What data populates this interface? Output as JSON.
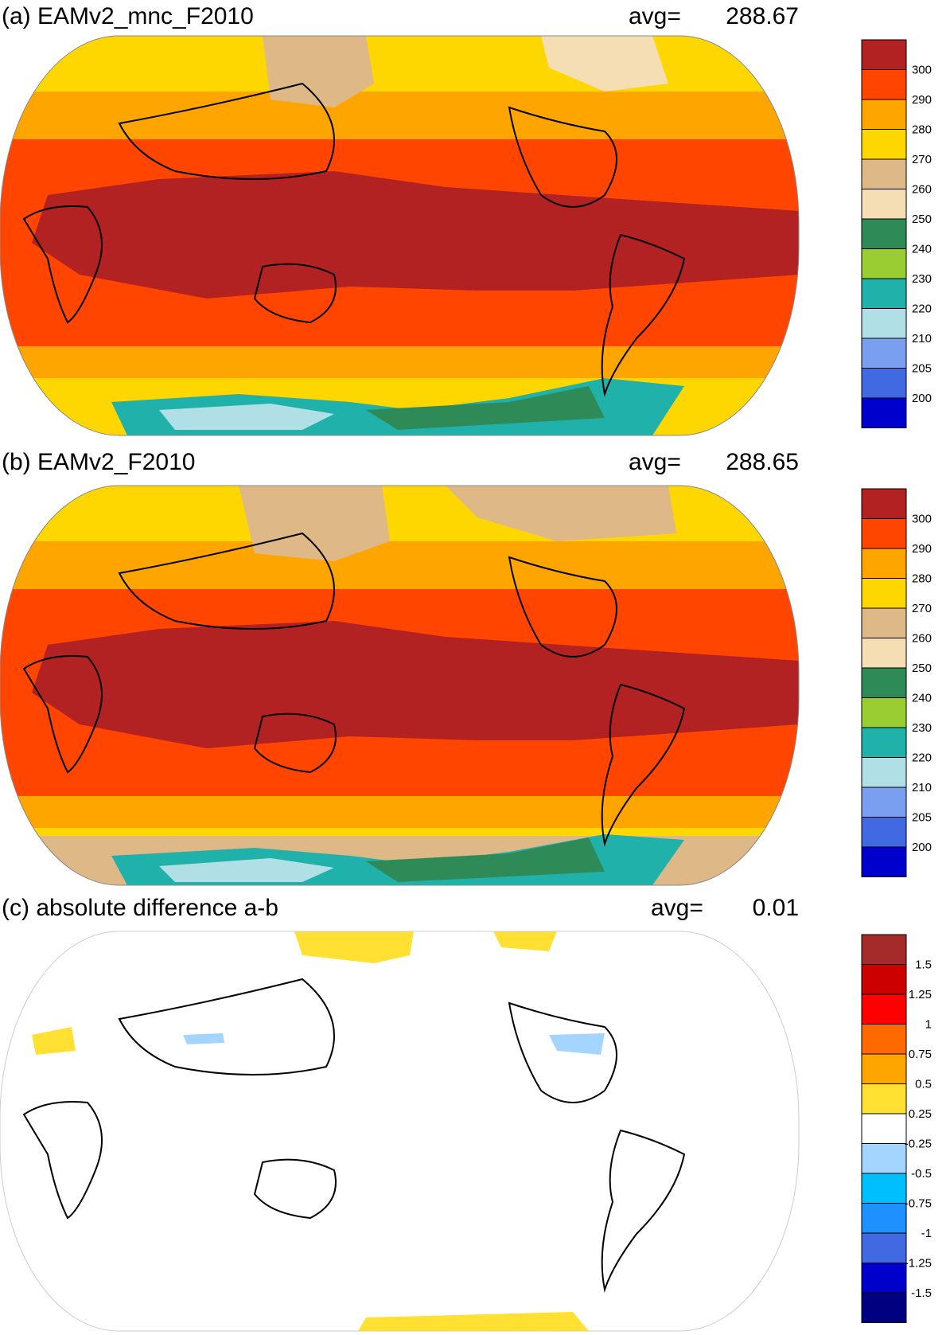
{
  "chart_data": [
    {
      "type": "heatmap",
      "panel": "(a)",
      "title": "(a) EAMv2_mnc_F2010",
      "avg_label": "avg=",
      "avg_value": "288.67",
      "colorbar": {
        "labels": [
          "300",
          "290",
          "280",
          "270",
          "260",
          "250",
          "240",
          "230",
          "220",
          "210",
          "205",
          "200"
        ],
        "colors": [
          "#b22222",
          "#ff4500",
          "#ffa500",
          "#ffd700",
          "#deb887",
          "#f5deb3",
          "#2e8b57",
          "#9acd32",
          "#20b2aa",
          "#b0e0e6",
          "#7b9ff0",
          "#4169e1",
          "#0000cd"
        ]
      }
    },
    {
      "type": "heatmap",
      "panel": "(b)",
      "title": "(b) EAMv2_F2010",
      "avg_label": "avg=",
      "avg_value": "288.65",
      "colorbar": {
        "labels": [
          "300",
          "290",
          "280",
          "270",
          "260",
          "250",
          "240",
          "230",
          "220",
          "210",
          "205",
          "200"
        ],
        "colors": [
          "#b22222",
          "#ff4500",
          "#ffa500",
          "#ffd700",
          "#deb887",
          "#f5deb3",
          "#2e8b57",
          "#9acd32",
          "#20b2aa",
          "#b0e0e6",
          "#7b9ff0",
          "#4169e1",
          "#0000cd"
        ]
      }
    },
    {
      "type": "heatmap",
      "panel": "(c)",
      "title": "(c) absolute difference a-b",
      "avg_label": "avg=",
      "avg_value": "0.01",
      "colorbar": {
        "labels": [
          "1.5",
          "1.25",
          "1",
          "0.75",
          "0.5",
          "0.25",
          "-0.25",
          "-0.5",
          "-0.75",
          "-1",
          "-1.25",
          "-1.5"
        ],
        "colors": [
          "#a52a2a",
          "#cd0000",
          "#ff0000",
          "#ff6a00",
          "#ffa500",
          "#ffe033",
          "#ffffff",
          "#a3d5ff",
          "#00bfff",
          "#1e90ff",
          "#4169e1",
          "#0000cd",
          "#000080"
        ]
      }
    }
  ]
}
